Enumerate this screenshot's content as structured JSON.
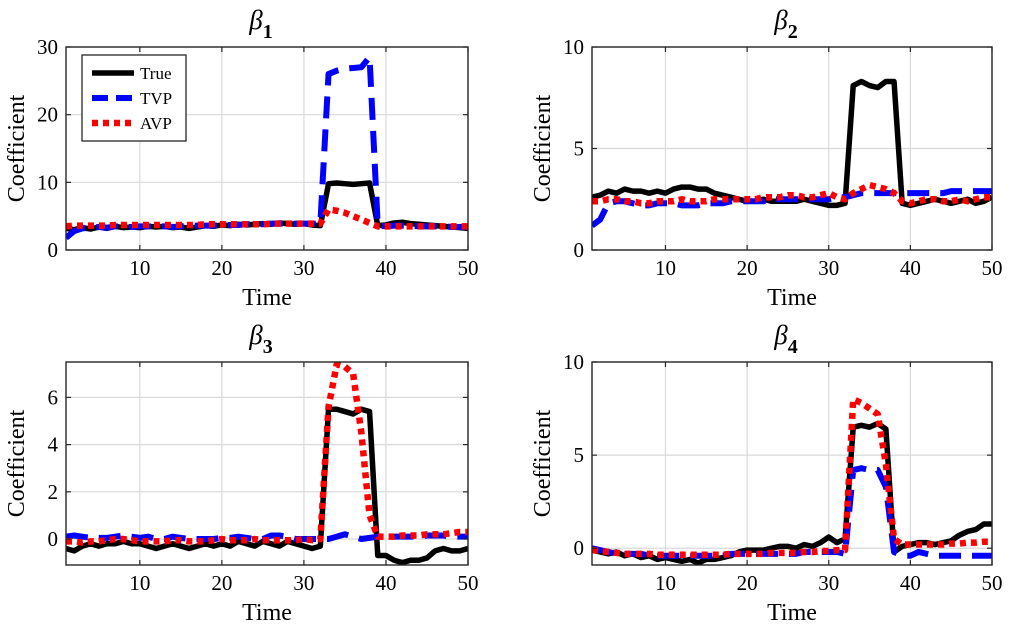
{
  "figure": {
    "legend": [
      "True",
      "TVP",
      "AVP"
    ],
    "series_colors": {
      "True": "#000000",
      "TVP": "#0000ff",
      "AVP": "#ff0000"
    },
    "series_styles": {
      "True": "solid",
      "TVP": "dashed",
      "AVP": "dotted"
    }
  },
  "chart_data": [
    {
      "type": "line",
      "title": "β",
      "title_subscript": "1",
      "xlabel": "Time",
      "ylabel": "Coefficient",
      "xlim": [
        1,
        50
      ],
      "ylim": [
        0,
        30
      ],
      "xticks": [
        10,
        20,
        30,
        40,
        50
      ],
      "yticks": [
        0,
        10,
        20,
        30
      ],
      "grid": true,
      "legend_position": "top-left",
      "x": [
        1,
        2,
        3,
        4,
        5,
        6,
        7,
        8,
        9,
        10,
        11,
        12,
        13,
        14,
        15,
        16,
        17,
        18,
        19,
        20,
        21,
        22,
        23,
        24,
        25,
        26,
        27,
        28,
        29,
        30,
        31,
        32,
        33,
        34,
        35,
        36,
        37,
        38,
        39,
        40,
        41,
        42,
        43,
        44,
        45,
        46,
        47,
        48,
        49,
        50
      ],
      "series": [
        {
          "name": "True",
          "values": [
            3.2,
            3.0,
            3.3,
            3.1,
            3.4,
            3.2,
            3.5,
            3.3,
            3.4,
            3.3,
            3.5,
            3.4,
            3.5,
            3.3,
            3.4,
            3.2,
            3.4,
            3.6,
            3.5,
            3.7,
            3.6,
            3.8,
            3.7,
            3.8,
            3.9,
            3.8,
            4.0,
            3.9,
            3.8,
            3.9,
            3.7,
            3.6,
            9.8,
            9.9,
            9.8,
            9.7,
            9.8,
            9.9,
            3.6,
            3.7,
            4.0,
            4.1,
            3.9,
            3.8,
            3.7,
            3.6,
            3.5,
            3.4,
            3.3,
            3.2
          ]
        },
        {
          "name": "TVP",
          "values": [
            1.8,
            2.8,
            3.2,
            3.3,
            3.4,
            3.3,
            3.5,
            3.4,
            3.4,
            3.5,
            3.5,
            3.5,
            3.5,
            3.4,
            3.5,
            3.6,
            3.6,
            3.6,
            3.6,
            3.7,
            3.7,
            3.7,
            3.8,
            3.8,
            3.8,
            3.9,
            3.9,
            3.9,
            3.9,
            3.9,
            3.9,
            3.9,
            26.0,
            26.5,
            26.8,
            26.9,
            27.0,
            28.5,
            3.6,
            3.5,
            3.6,
            3.6,
            3.6,
            3.5,
            3.5,
            3.5,
            3.5,
            3.4,
            3.4,
            3.4
          ]
        },
        {
          "name": "AVP",
          "values": [
            3.5,
            3.6,
            3.6,
            3.6,
            3.6,
            3.6,
            3.7,
            3.7,
            3.7,
            3.7,
            3.7,
            3.7,
            3.7,
            3.7,
            3.7,
            3.7,
            3.7,
            3.8,
            3.8,
            3.8,
            3.8,
            3.8,
            3.8,
            3.8,
            3.8,
            3.9,
            3.9,
            3.9,
            3.9,
            3.9,
            3.9,
            3.9,
            6.0,
            5.8,
            5.5,
            5.0,
            4.5,
            4.0,
            3.5,
            3.5,
            3.5,
            3.5,
            3.5,
            3.5,
            3.5,
            3.5,
            3.5,
            3.5,
            3.5,
            3.5
          ]
        }
      ]
    },
    {
      "type": "line",
      "title": "β",
      "title_subscript": "2",
      "xlabel": "Time",
      "ylabel": "Coefficient",
      "xlim": [
        1,
        50
      ],
      "ylim": [
        0,
        10
      ],
      "xticks": [
        10,
        20,
        30,
        40,
        50
      ],
      "yticks": [
        0,
        5,
        10
      ],
      "grid": true,
      "x": [
        1,
        2,
        3,
        4,
        5,
        6,
        7,
        8,
        9,
        10,
        11,
        12,
        13,
        14,
        15,
        16,
        17,
        18,
        19,
        20,
        21,
        22,
        23,
        24,
        25,
        26,
        27,
        28,
        29,
        30,
        31,
        32,
        33,
        34,
        35,
        36,
        37,
        38,
        39,
        40,
        41,
        42,
        43,
        44,
        45,
        46,
        47,
        48,
        49,
        50
      ],
      "series": [
        {
          "name": "True",
          "values": [
            2.6,
            2.7,
            2.9,
            2.8,
            3.0,
            2.9,
            2.9,
            2.8,
            2.9,
            2.8,
            3.0,
            3.1,
            3.1,
            3.0,
            3.0,
            2.8,
            2.7,
            2.6,
            2.5,
            2.4,
            2.4,
            2.5,
            2.4,
            2.4,
            2.4,
            2.4,
            2.5,
            2.4,
            2.3,
            2.2,
            2.2,
            2.3,
            8.1,
            8.3,
            8.1,
            8.0,
            8.3,
            8.3,
            2.3,
            2.2,
            2.3,
            2.4,
            2.5,
            2.4,
            2.3,
            2.4,
            2.5,
            2.3,
            2.4,
            2.6
          ]
        },
        {
          "name": "TVP",
          "values": [
            1.2,
            1.5,
            2.3,
            2.4,
            2.4,
            2.3,
            2.2,
            2.2,
            2.3,
            2.3,
            2.3,
            2.2,
            2.2,
            2.2,
            2.3,
            2.3,
            2.3,
            2.4,
            2.4,
            2.4,
            2.4,
            2.4,
            2.5,
            2.5,
            2.5,
            2.5,
            2.5,
            2.5,
            2.5,
            2.5,
            2.6,
            2.6,
            2.7,
            2.8,
            2.8,
            2.8,
            2.8,
            2.8,
            2.8,
            2.8,
            2.8,
            2.8,
            2.8,
            2.8,
            2.9,
            2.9,
            2.9,
            2.9,
            2.9,
            2.9
          ]
        },
        {
          "name": "AVP",
          "values": [
            2.4,
            2.4,
            2.5,
            2.5,
            2.4,
            2.4,
            2.3,
            2.3,
            2.4,
            2.4,
            2.4,
            2.5,
            2.4,
            2.4,
            2.4,
            2.5,
            2.5,
            2.5,
            2.5,
            2.5,
            2.5,
            2.6,
            2.6,
            2.6,
            2.7,
            2.7,
            2.6,
            2.6,
            2.7,
            2.8,
            2.6,
            2.5,
            2.8,
            3.0,
            3.2,
            3.1,
            3.0,
            2.8,
            2.4,
            2.3,
            2.4,
            2.5,
            2.5,
            2.4,
            2.4,
            2.5,
            2.4,
            2.5,
            2.6,
            2.6
          ]
        }
      ]
    },
    {
      "type": "line",
      "title": "β",
      "title_subscript": "3",
      "xlabel": "Time",
      "ylabel": "Coefficient",
      "xlim": [
        1,
        50
      ],
      "ylim": [
        -1.1,
        7.5
      ],
      "xticks": [
        10,
        20,
        30,
        40,
        50
      ],
      "yticks": [
        0,
        2,
        4,
        6
      ],
      "grid": true,
      "x": [
        1,
        2,
        3,
        4,
        5,
        6,
        7,
        8,
        9,
        10,
        11,
        12,
        13,
        14,
        15,
        16,
        17,
        18,
        19,
        20,
        21,
        22,
        23,
        24,
        25,
        26,
        27,
        28,
        29,
        30,
        31,
        32,
        33,
        34,
        35,
        36,
        37,
        38,
        39,
        40,
        41,
        42,
        43,
        44,
        45,
        46,
        47,
        48,
        49,
        50
      ],
      "series": [
        {
          "name": "True",
          "values": [
            -0.4,
            -0.5,
            -0.3,
            -0.2,
            -0.3,
            -0.2,
            -0.2,
            -0.1,
            -0.2,
            -0.2,
            -0.3,
            -0.4,
            -0.3,
            -0.2,
            -0.3,
            -0.4,
            -0.3,
            -0.2,
            -0.3,
            -0.2,
            -0.3,
            -0.1,
            -0.2,
            -0.3,
            -0.1,
            -0.2,
            -0.3,
            -0.1,
            -0.2,
            -0.3,
            -0.4,
            -0.3,
            5.5,
            5.5,
            5.4,
            5.3,
            5.5,
            5.4,
            -0.7,
            -0.7,
            -0.9,
            -1.0,
            -0.9,
            -0.9,
            -0.8,
            -0.5,
            -0.4,
            -0.5,
            -0.5,
            -0.4
          ]
        },
        {
          "name": "TVP",
          "values": [
            0.1,
            0.15,
            0.1,
            0.05,
            0.05,
            0.05,
            0.1,
            0.15,
            0.1,
            0.05,
            0.1,
            0.0,
            0.0,
            0.1,
            0.05,
            0.0,
            0.0,
            0.0,
            0.0,
            0.05,
            0.05,
            0.1,
            0.05,
            0.0,
            0.0,
            0.15,
            0.15,
            0.1,
            0.0,
            0.0,
            0.0,
            0.0,
            0.0,
            0.1,
            0.2,
            0.1,
            0.0,
            0.05,
            0.1,
            0.1,
            0.1,
            0.1,
            0.1,
            0.1,
            0.15,
            0.15,
            0.15,
            0.1,
            0.1,
            0.1
          ]
        },
        {
          "name": "AVP",
          "values": [
            -0.1,
            -0.1,
            -0.15,
            -0.1,
            -0.1,
            -0.05,
            0.0,
            0.0,
            -0.05,
            -0.1,
            -0.1,
            -0.1,
            -0.1,
            -0.05,
            -0.05,
            -0.1,
            -0.1,
            -0.1,
            -0.05,
            0.0,
            -0.05,
            -0.05,
            -0.05,
            0.0,
            -0.05,
            -0.05,
            -0.05,
            -0.05,
            -0.05,
            0.0,
            -0.05,
            0.0,
            5.6,
            7.4,
            7.3,
            7.0,
            4.5,
            1.0,
            0.1,
            0.1,
            0.1,
            0.15,
            0.15,
            0.15,
            0.2,
            0.2,
            0.2,
            0.25,
            0.3,
            0.3
          ]
        }
      ]
    },
    {
      "type": "line",
      "title": "β",
      "title_subscript": "4",
      "xlabel": "Time",
      "ylabel": "Coefficient",
      "xlim": [
        1,
        50
      ],
      "ylim": [
        -0.9,
        10
      ],
      "xticks": [
        10,
        20,
        30,
        40,
        50
      ],
      "yticks": [
        0,
        5,
        10
      ],
      "grid": true,
      "x": [
        1,
        2,
        3,
        4,
        5,
        6,
        7,
        8,
        9,
        10,
        11,
        12,
        13,
        14,
        15,
        16,
        17,
        18,
        19,
        20,
        21,
        22,
        23,
        24,
        25,
        26,
        27,
        28,
        29,
        30,
        31,
        32,
        33,
        34,
        35,
        36,
        37,
        38,
        39,
        40,
        41,
        42,
        43,
        44,
        45,
        46,
        47,
        48,
        49,
        50
      ],
      "series": [
        {
          "name": "True",
          "values": [
            -0.1,
            -0.2,
            -0.3,
            -0.2,
            -0.4,
            -0.3,
            -0.5,
            -0.4,
            -0.6,
            -0.5,
            -0.6,
            -0.7,
            -0.6,
            -0.8,
            -0.6,
            -0.6,
            -0.5,
            -0.4,
            -0.2,
            -0.1,
            -0.1,
            -0.1,
            0.0,
            0.1,
            0.1,
            0.0,
            0.2,
            0.1,
            0.3,
            0.6,
            0.3,
            0.5,
            6.5,
            6.6,
            6.5,
            6.7,
            6.4,
            -0.2,
            0.1,
            0.2,
            0.3,
            0.3,
            0.2,
            0.3,
            0.4,
            0.7,
            0.9,
            1.0,
            1.3,
            1.3
          ]
        },
        {
          "name": "TVP",
          "values": [
            0.0,
            -0.1,
            -0.2,
            -0.3,
            -0.3,
            -0.3,
            -0.3,
            -0.4,
            -0.4,
            -0.4,
            -0.4,
            -0.4,
            -0.4,
            -0.4,
            -0.4,
            -0.4,
            -0.4,
            -0.3,
            -0.3,
            -0.3,
            -0.3,
            -0.3,
            -0.3,
            -0.3,
            -0.3,
            -0.3,
            -0.2,
            -0.2,
            -0.2,
            -0.2,
            -0.2,
            -0.3,
            4.2,
            4.3,
            4.2,
            4.2,
            3.3,
            -0.2,
            -0.4,
            -0.4,
            -0.2,
            -0.3,
            -0.4,
            -0.4,
            -0.4,
            -0.4,
            -0.4,
            -0.4,
            -0.4,
            -0.4
          ]
        },
        {
          "name": "AVP",
          "values": [
            -0.1,
            -0.15,
            -0.2,
            -0.25,
            -0.3,
            -0.3,
            -0.3,
            -0.3,
            -0.35,
            -0.35,
            -0.35,
            -0.35,
            -0.35,
            -0.35,
            -0.35,
            -0.35,
            -0.35,
            -0.3,
            -0.3,
            -0.3,
            -0.3,
            -0.3,
            -0.25,
            -0.25,
            -0.25,
            -0.25,
            -0.2,
            -0.2,
            -0.15,
            -0.15,
            -0.1,
            -0.1,
            8.0,
            7.8,
            7.5,
            7.2,
            4.5,
            0.5,
            0.2,
            0.2,
            0.2,
            0.2,
            0.2,
            0.2,
            0.25,
            0.25,
            0.3,
            0.3,
            0.35,
            0.35
          ]
        }
      ]
    }
  ]
}
